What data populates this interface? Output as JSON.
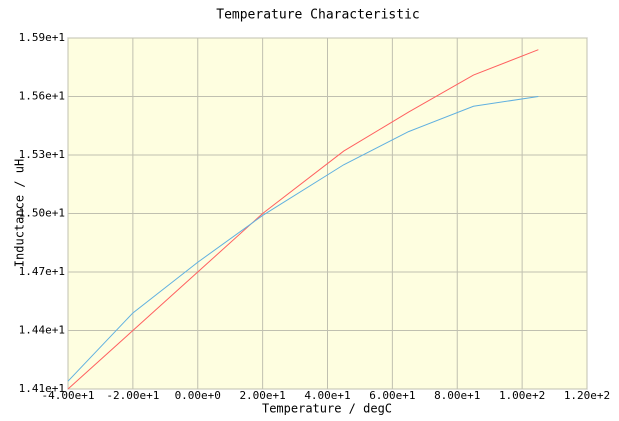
{
  "chart_data": {
    "type": "line",
    "title": "Temperature Characteristic",
    "x_label": "Temperature / degC",
    "y_label": "Inductance / uH",
    "x": [
      -40,
      -20,
      0,
      20,
      45,
      65,
      85,
      105
    ],
    "series": [
      {
        "color": "#ff6060",
        "values": [
          14.1,
          14.4,
          14.7,
          15.0,
          15.32,
          15.52,
          15.71,
          15.84
        ]
      },
      {
        "color": "#60b0e0",
        "values": [
          14.14,
          14.49,
          14.75,
          14.99,
          15.25,
          15.42,
          15.55,
          15.6
        ]
      }
    ],
    "xlim": [
      -40,
      120
    ],
    "xticks": [
      {
        "value": -40,
        "label": "-4.00e+1"
      },
      {
        "value": -20,
        "label": "-2.00e+1"
      },
      {
        "value": 0,
        "label": "0.00e+0"
      },
      {
        "value": 20,
        "label": "2.00e+1"
      },
      {
        "value": 40,
        "label": "4.00e+1"
      },
      {
        "value": 60,
        "label": "6.00e+1"
      },
      {
        "value": 80,
        "label": "8.00e+1"
      },
      {
        "value": 100,
        "label": "1.00e+2"
      },
      {
        "value": 120,
        "label": "1.20e+2"
      }
    ],
    "ylim": [
      14.1,
      15.9
    ],
    "yticks": [
      {
        "value": 14.1,
        "label": "1.41e+1"
      },
      {
        "value": 14.4,
        "label": "1.44e+1"
      },
      {
        "value": 14.7,
        "label": "1.47e+1"
      },
      {
        "value": 15.0,
        "label": "1.50e+1"
      },
      {
        "value": 15.3,
        "label": "1.53e+1"
      },
      {
        "value": 15.6,
        "label": "1.56e+1"
      },
      {
        "value": 15.9,
        "label": "1.59e+1"
      }
    ],
    "grid": true,
    "background": "#fefee0"
  }
}
